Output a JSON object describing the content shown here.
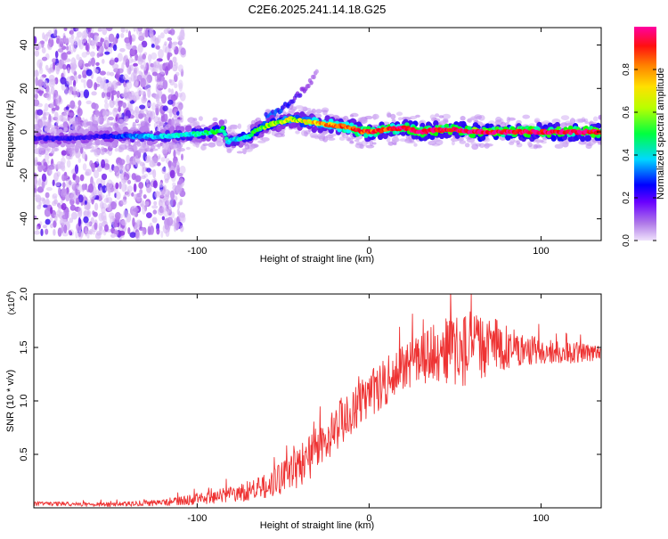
{
  "figure": {
    "title": "C2E6.2025.241.14.18.G25"
  },
  "chart_data": [
    {
      "type": "heatmap",
      "name": "spectrogram",
      "title": "C2E6.2025.241.14.18.G25",
      "xlabel": "Height of straight line (km)",
      "ylabel": "Frequency (Hz)",
      "xlim": [
        -195,
        135
      ],
      "ylim": [
        -50,
        48
      ],
      "x_ticks": [
        {
          "value": -100,
          "label": "-100"
        },
        {
          "value": 0,
          "label": "0"
        },
        {
          "value": 100,
          "label": "100"
        }
      ],
      "y_ticks": [
        {
          "value": 40,
          "label": "40"
        },
        {
          "value": 20,
          "label": "20"
        },
        {
          "value": 0,
          "label": "0"
        },
        {
          "value": -20,
          "label": "-20"
        },
        {
          "value": -40,
          "label": "-40"
        }
      ],
      "ridge": {
        "x": [
          -195,
          -175,
          -155,
          -140,
          -120,
          -100,
          -90,
          -85,
          -82,
          -80,
          -75,
          -70,
          -65,
          -55,
          -45,
          -40,
          -30,
          -20,
          -10,
          -5,
          0,
          10,
          20,
          30,
          40,
          50,
          60,
          70,
          80,
          90,
          100,
          110,
          120,
          135
        ],
        "freq": [
          -3,
          -3,
          -2,
          -2,
          -2,
          -1,
          0,
          1.5,
          -5,
          -4,
          -3,
          -2,
          1,
          4,
          6,
          5,
          4,
          3,
          2,
          0,
          0,
          1,
          2,
          0,
          1,
          1,
          0,
          0,
          0,
          0,
          0,
          0,
          0,
          0
        ],
        "amplitude": [
          0.2,
          0.2,
          0.2,
          0.3,
          0.35,
          0.4,
          0.45,
          0.45,
          0.35,
          0.35,
          0.4,
          0.45,
          0.5,
          0.55,
          0.6,
          0.6,
          0.7,
          0.75,
          0.8,
          0.85,
          0.85,
          0.85,
          0.9,
          0.95,
          0.95,
          0.95,
          1.0,
          1.0,
          0.95,
          0.95,
          0.95,
          0.95,
          0.95,
          0.95
        ]
      },
      "branch": {
        "x": [
          -60,
          -50,
          -45,
          -40,
          -35,
          -30
        ],
        "freq": [
          7,
          11,
          14,
          18,
          22,
          28
        ],
        "amplitude": [
          0.3,
          0.25,
          0.2,
          0.15,
          0.1,
          0.05
        ]
      },
      "noise_region": {
        "x_start": -195,
        "x_end": -120,
        "freq_spread": 48
      },
      "colorbar": {
        "label": "Normalized spectral amplitude",
        "range": [
          0,
          1
        ],
        "ticks": [
          {
            "value": 0.0,
            "label": "0.0"
          },
          {
            "value": 0.2,
            "label": "0.2"
          },
          {
            "value": 0.4,
            "label": "0.4"
          },
          {
            "value": 0.6,
            "label": "0.6"
          },
          {
            "value": 0.8,
            "label": "0.8"
          }
        ],
        "colors": [
          "#e8d8f8",
          "#8a2be2",
          "#0000ff",
          "#00ffff",
          "#00ff00",
          "#ffff00",
          "#ff8000",
          "#ff0000",
          "#ff00a0"
        ]
      }
    },
    {
      "type": "line",
      "name": "snr",
      "xlabel": "Height of straight line (km)",
      "ylabel": "SNR (10 * v/v)",
      "multiplier": "(x10",
      "multiplier_exp": "4",
      "multiplier_close": ")",
      "xlim": [
        -195,
        135
      ],
      "ylim": [
        0,
        2.0
      ],
      "color": "#ee3333",
      "x_ticks": [
        {
          "value": -100,
          "label": "-100"
        },
        {
          "value": 0,
          "label": "0"
        },
        {
          "value": 100,
          "label": "100"
        }
      ],
      "y_ticks": [
        {
          "value": 2.0,
          "label": "2.0"
        },
        {
          "value": 1.5,
          "label": "1.5"
        },
        {
          "value": 1.0,
          "label": "1.0"
        },
        {
          "value": 0.5,
          "label": "0.5"
        }
      ],
      "envelope": {
        "x": [
          -195,
          -150,
          -120,
          -100,
          -80,
          -70,
          -60,
          -50,
          -40,
          -30,
          -20,
          -10,
          0,
          10,
          20,
          30,
          40,
          50,
          60,
          70,
          80,
          90,
          100,
          110,
          120,
          135
        ],
        "mean": [
          0.04,
          0.03,
          0.05,
          0.08,
          0.13,
          0.16,
          0.2,
          0.28,
          0.4,
          0.55,
          0.75,
          0.9,
          1.05,
          1.18,
          1.3,
          1.4,
          1.45,
          1.48,
          1.5,
          1.52,
          1.5,
          1.48,
          1.47,
          1.45,
          1.45,
          1.47
        ],
        "spread": [
          0.02,
          0.02,
          0.03,
          0.05,
          0.08,
          0.1,
          0.12,
          0.15,
          0.2,
          0.22,
          0.22,
          0.22,
          0.22,
          0.22,
          0.22,
          0.25,
          0.3,
          0.35,
          0.35,
          0.28,
          0.2,
          0.15,
          0.12,
          0.1,
          0.1,
          0.08
        ]
      }
    }
  ]
}
